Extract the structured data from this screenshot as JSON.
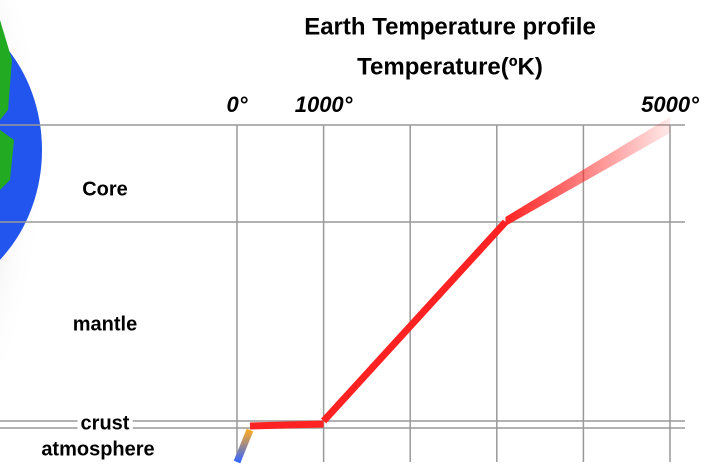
{
  "chart_data": {
    "type": "profile",
    "title": "Earth Temperature profile",
    "x_label": "Temperature(ºK)",
    "categories": [
      "Core",
      "mantle",
      "crust",
      "atmosphere"
    ],
    "ranges": [
      [
        3100,
        5000
      ],
      [
        1000,
        3100
      ],
      [
        150,
        1000
      ],
      [
        0,
        150
      ]
    ],
    "color": "#ff2222",
    "xlim": [
      0,
      5000
    ],
    "xticks": [
      {
        "value": 0,
        "label": "0°"
      },
      {
        "value": 1000,
        "label": "1000°"
      },
      {
        "value": 2000,
        "label": null
      },
      {
        "value": 3000,
        "label": null
      },
      {
        "value": 4000,
        "label": null
      },
      {
        "value": 5000,
        "label": "5000°"
      }
    ],
    "grid": true
  }
}
